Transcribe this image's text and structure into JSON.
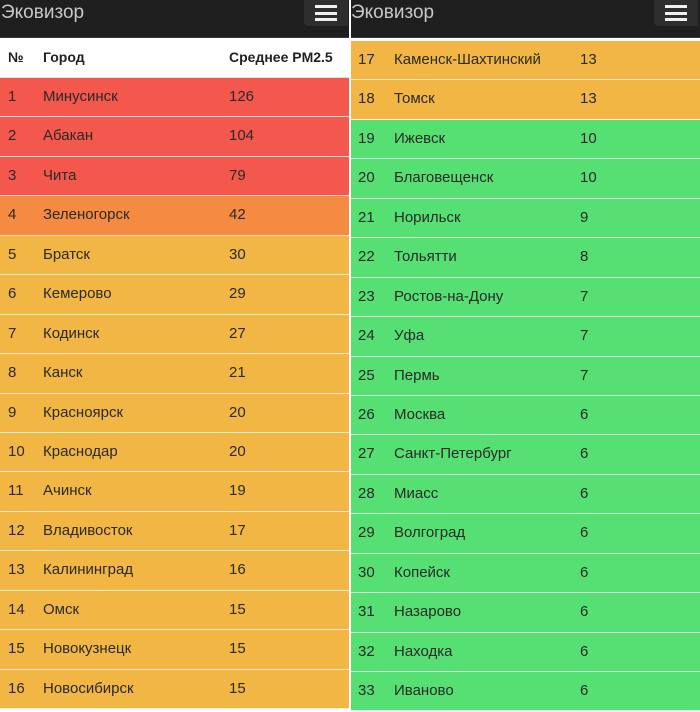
{
  "app": {
    "title": "Эковизор",
    "menu_icon": "hamburger-menu-icon"
  },
  "table": {
    "headers": {
      "num": "№",
      "city": "Город",
      "value": "Среднее PM2.5"
    }
  },
  "colors": {
    "red": "#f4574b",
    "orange": "#f58a43",
    "yellow": "#f1b643",
    "green": "#56df72"
  },
  "left_rows": [
    {
      "num": "1",
      "city": "Минусинск",
      "value": "126",
      "level": "red"
    },
    {
      "num": "2",
      "city": "Абакан",
      "value": "104",
      "level": "red"
    },
    {
      "num": "3",
      "city": "Чита",
      "value": "79",
      "level": "red"
    },
    {
      "num": "4",
      "city": "Зеленогорск",
      "value": "42",
      "level": "orange"
    },
    {
      "num": "5",
      "city": "Братск",
      "value": "30",
      "level": "yellow"
    },
    {
      "num": "6",
      "city": "Кемерово",
      "value": "29",
      "level": "yellow"
    },
    {
      "num": "7",
      "city": "Кодинск",
      "value": "27",
      "level": "yellow"
    },
    {
      "num": "8",
      "city": "Канск",
      "value": "21",
      "level": "yellow"
    },
    {
      "num": "9",
      "city": "Красноярск",
      "value": "20",
      "level": "yellow"
    },
    {
      "num": "10",
      "city": "Краснодар",
      "value": "20",
      "level": "yellow"
    },
    {
      "num": "11",
      "city": "Ачинск",
      "value": "19",
      "level": "yellow"
    },
    {
      "num": "12",
      "city": "Владивосток",
      "value": "17",
      "level": "yellow"
    },
    {
      "num": "13",
      "city": "Калининград",
      "value": "16",
      "level": "yellow"
    },
    {
      "num": "14",
      "city": "Омск",
      "value": "15",
      "level": "yellow"
    },
    {
      "num": "15",
      "city": "Новокузнецк",
      "value": "15",
      "level": "yellow"
    },
    {
      "num": "16",
      "city": "Новосибирск",
      "value": "15",
      "level": "yellow"
    }
  ],
  "right_rows": [
    {
      "num": "17",
      "city": "Каменск-Шахтинский",
      "value": "13",
      "level": "yellow"
    },
    {
      "num": "18",
      "city": "Томск",
      "value": "13",
      "level": "yellow"
    },
    {
      "num": "19",
      "city": "Ижевск",
      "value": "10",
      "level": "green"
    },
    {
      "num": "20",
      "city": "Благовещенск",
      "value": "10",
      "level": "green"
    },
    {
      "num": "21",
      "city": "Норильск",
      "value": "9",
      "level": "green"
    },
    {
      "num": "22",
      "city": "Тольятти",
      "value": "8",
      "level": "green"
    },
    {
      "num": "23",
      "city": "Ростов-на-Дону",
      "value": "7",
      "level": "green"
    },
    {
      "num": "24",
      "city": "Уфа",
      "value": "7",
      "level": "green"
    },
    {
      "num": "25",
      "city": "Пермь",
      "value": "7",
      "level": "green"
    },
    {
      "num": "26",
      "city": "Москва",
      "value": "6",
      "level": "green"
    },
    {
      "num": "27",
      "city": "Санкт-Петербург",
      "value": "6",
      "level": "green"
    },
    {
      "num": "28",
      "city": "Миасс",
      "value": "6",
      "level": "green"
    },
    {
      "num": "29",
      "city": "Волгоград",
      "value": "6",
      "level": "green"
    },
    {
      "num": "30",
      "city": "Копейск",
      "value": "6",
      "level": "green"
    },
    {
      "num": "31",
      "city": "Назарово",
      "value": "6",
      "level": "green"
    },
    {
      "num": "32",
      "city": "Находка",
      "value": "6",
      "level": "green"
    },
    {
      "num": "33",
      "city": "Иваново",
      "value": "6",
      "level": "green"
    }
  ]
}
